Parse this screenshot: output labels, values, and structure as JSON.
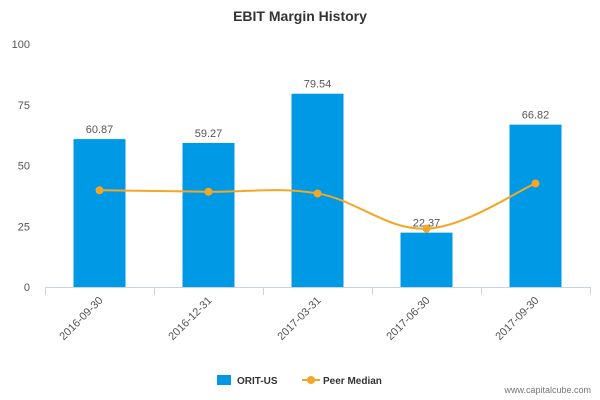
{
  "chart_data": {
    "type": "bar",
    "title": "EBIT Margin History",
    "categories": [
      "2016-09-30",
      "2016-12-31",
      "2017-03-31",
      "2017-06-30",
      "2017-09-30"
    ],
    "series": [
      {
        "name": "ORIT-US",
        "type": "bar",
        "color": "#0099e6",
        "values": [
          60.87,
          59.27,
          79.54,
          22.37,
          66.82
        ]
      },
      {
        "name": "Peer Median",
        "type": "line",
        "color": "#f5a623",
        "values": [
          39.8,
          39.2,
          38.5,
          24.0,
          42.6
        ]
      }
    ],
    "data_labels": [
      "60.87",
      "59.27",
      "79.54",
      "22.37",
      "66.82"
    ],
    "ylim": [
      0,
      100
    ],
    "yticks": [
      0,
      25,
      50,
      75,
      100
    ],
    "grid": false,
    "legend": "bottom-center"
  },
  "watermark": "www.capitalcube.com"
}
